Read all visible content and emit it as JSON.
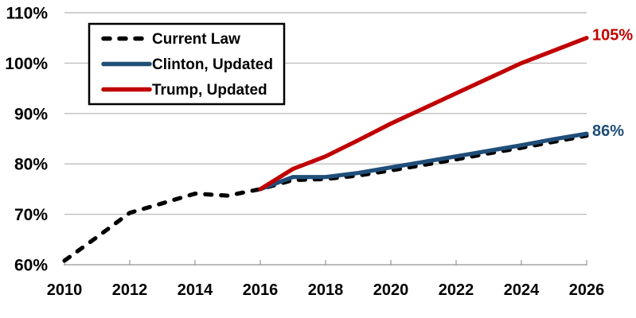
{
  "chart_data": {
    "type": "line",
    "title": "",
    "xlabel": "",
    "ylabel": "",
    "xlim": [
      2010,
      2026
    ],
    "ylim": [
      60,
      110
    ],
    "grid": true,
    "legend_position": "top-left",
    "yticks": [
      60,
      70,
      80,
      90,
      100,
      110
    ],
    "ytick_labels": [
      "60%",
      "70%",
      "80%",
      "90%",
      "100%",
      "110%"
    ],
    "xticks": [
      2010,
      2012,
      2014,
      2016,
      2018,
      2020,
      2022,
      2024,
      2026
    ],
    "xtick_labels": [
      "2010",
      "2012",
      "2014",
      "2016",
      "2018",
      "2020",
      "2022",
      "2024",
      "2026"
    ],
    "series": [
      {
        "name": "Current Law",
        "color": "#000000",
        "style": "dashed",
        "x": [
          2010,
          2011,
          2012,
          2013,
          2014,
          2015,
          2016,
          2017,
          2018,
          2019,
          2020,
          2021,
          2022,
          2023,
          2024,
          2025,
          2026
        ],
        "values": [
          60.8,
          65.5,
          70.3,
          72.2,
          74.1,
          73.7,
          75.0,
          76.8,
          77.0,
          77.7,
          78.7,
          79.8,
          80.9,
          82.1,
          83.2,
          84.4,
          85.6
        ]
      },
      {
        "name": "Clinton, Updated",
        "color": "#1F4E79",
        "style": "solid",
        "x": [
          2016,
          2017,
          2018,
          2019,
          2020,
          2021,
          2022,
          2023,
          2024,
          2025,
          2026
        ],
        "values": [
          75.0,
          77.4,
          77.4,
          78.2,
          79.3,
          80.4,
          81.5,
          82.6,
          83.7,
          84.9,
          86.0
        ]
      },
      {
        "name": "Trump, Updated",
        "color": "#C00000",
        "style": "solid",
        "x": [
          2016,
          2017,
          2018,
          2019,
          2020,
          2021,
          2022,
          2023,
          2024,
          2025,
          2026
        ],
        "values": [
          75.0,
          79.0,
          81.5,
          84.7,
          88.0,
          91.0,
          94.0,
          97.0,
          100.0,
          102.5,
          105.0
        ]
      }
    ],
    "annotations": [
      {
        "text": "105%",
        "x": 2026,
        "y": 105,
        "color": "#C00000"
      },
      {
        "text": "86%",
        "x": 2026,
        "y": 86,
        "color": "#1F4E79"
      }
    ]
  },
  "colors": {
    "grid": "#BFBFBF",
    "axis": "#A6A6A6",
    "text": "#000000",
    "background": "#FFFFFF"
  }
}
